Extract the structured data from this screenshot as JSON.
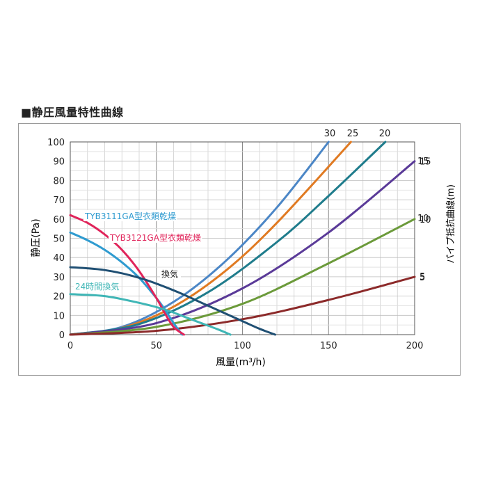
{
  "title": "■静圧風量特性曲線",
  "chart_data": {
    "type": "line",
    "xlabel": "風量(m³/h)",
    "ylabel": "静圧(Pa)",
    "y2label": "パイプ抵抗曲線(m)",
    "xlim": [
      0,
      200
    ],
    "ylim": [
      0,
      100
    ],
    "x_ticks": [
      "0",
      "50",
      "100",
      "150",
      "200"
    ],
    "y_ticks": [
      "0",
      "10",
      "20",
      "30",
      "40",
      "50",
      "60",
      "70",
      "80",
      "90",
      "100"
    ],
    "y2_ticks": [
      "5",
      "10",
      "15"
    ],
    "grid": true,
    "fan_curves": [
      {
        "label": "TYB3111GA型衣類乾燥",
        "color": "#2f9bd0",
        "points": [
          [
            0,
            53
          ],
          [
            10,
            49
          ],
          [
            20,
            44
          ],
          [
            30,
            37.5
          ],
          [
            40,
            29.5
          ],
          [
            50,
            19
          ],
          [
            55,
            13
          ],
          [
            60,
            6
          ],
          [
            65,
            0
          ]
        ]
      },
      {
        "label": "TYB3121GA型衣類乾燥",
        "color": "#e0245a",
        "points": [
          [
            0,
            62
          ],
          [
            10,
            58
          ],
          [
            20,
            52
          ],
          [
            30,
            44
          ],
          [
            40,
            33
          ],
          [
            50,
            19
          ],
          [
            55,
            11
          ],
          [
            60,
            4
          ],
          [
            66,
            0
          ]
        ]
      },
      {
        "label": "換気",
        "color": "#1f4f73",
        "points": [
          [
            0,
            35
          ],
          [
            20,
            33.5
          ],
          [
            40,
            29.5
          ],
          [
            60,
            23
          ],
          [
            80,
            15
          ],
          [
            100,
            7
          ],
          [
            110,
            3
          ],
          [
            119,
            0
          ]
        ]
      },
      {
        "label": "24時間換気",
        "color": "#3fb6b6",
        "points": [
          [
            0,
            21
          ],
          [
            20,
            20
          ],
          [
            40,
            16.5
          ],
          [
            55,
            13
          ],
          [
            70,
            8
          ],
          [
            85,
            3
          ],
          [
            93,
            0
          ]
        ]
      }
    ],
    "pipe_curves": [
      {
        "label": "30",
        "color": "#4b86c6",
        "points": [
          [
            0,
            0
          ],
          [
            30,
            4
          ],
          [
            60,
            17
          ],
          [
            90,
            38
          ],
          [
            120,
            66
          ],
          [
            150,
            100
          ]
        ]
      },
      {
        "label": "25",
        "color": "#e07a22",
        "points": [
          [
            0,
            0
          ],
          [
            30,
            3.5
          ],
          [
            60,
            14.5
          ],
          [
            90,
            33
          ],
          [
            120,
            58
          ],
          [
            163,
            100
          ]
        ]
      },
      {
        "label": "20",
        "color": "#1f7c8c",
        "points": [
          [
            0,
            0
          ],
          [
            40,
            5.5
          ],
          [
            80,
            22
          ],
          [
            120,
            48
          ],
          [
            150,
            72
          ],
          [
            183,
            100
          ]
        ]
      },
      {
        "label": "15",
        "color": "#5a3a98",
        "points": [
          [
            0,
            0
          ],
          [
            50,
            6
          ],
          [
            100,
            24
          ],
          [
            150,
            53
          ],
          [
            200,
            90
          ]
        ]
      },
      {
        "label": "10",
        "color": "#6b9a3a",
        "points": [
          [
            0,
            0
          ],
          [
            50,
            4
          ],
          [
            100,
            16
          ],
          [
            150,
            37
          ],
          [
            200,
            60
          ]
        ]
      },
      {
        "label": "5",
        "color": "#8c2a2a",
        "points": [
          [
            0,
            0
          ],
          [
            50,
            2
          ],
          [
            100,
            8
          ],
          [
            150,
            18
          ],
          [
            200,
            30
          ]
        ]
      }
    ]
  }
}
